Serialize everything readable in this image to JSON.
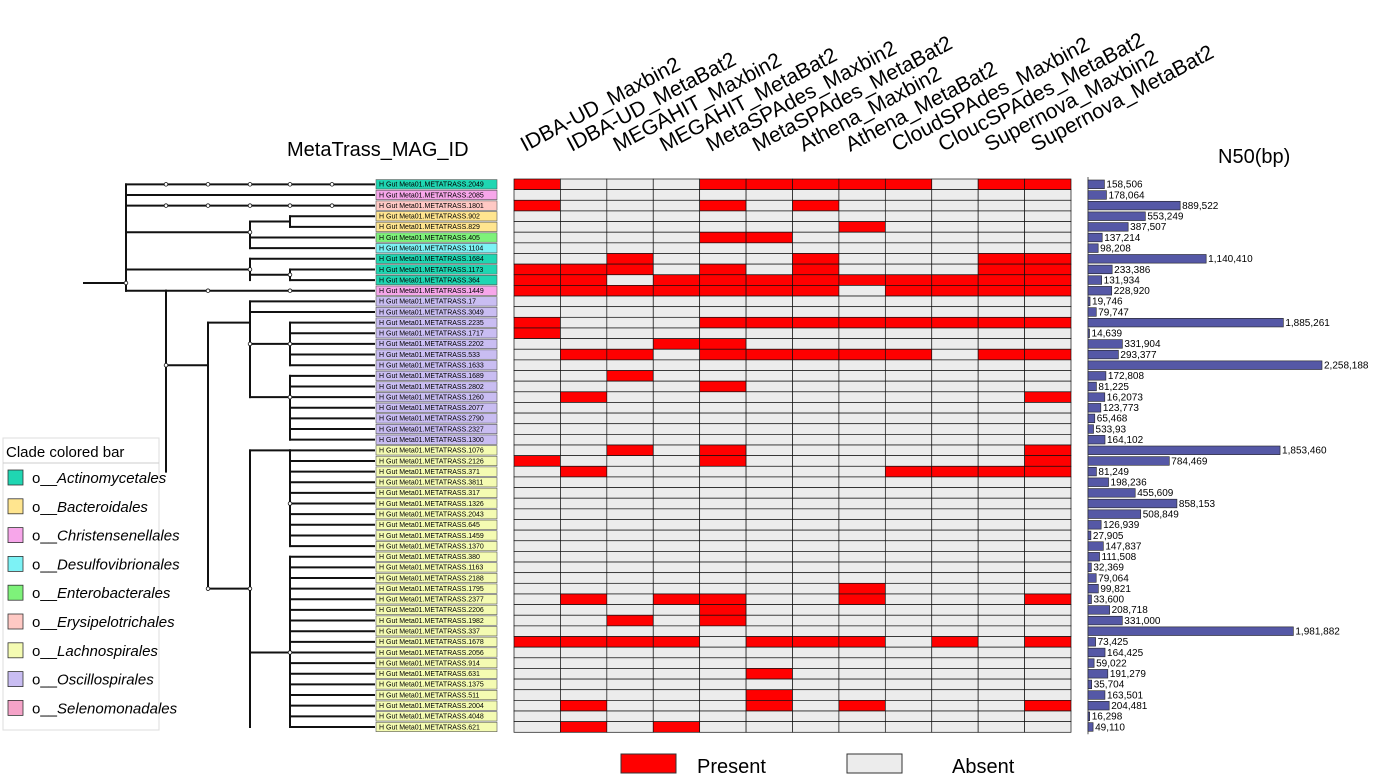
{
  "titles": {
    "id_title": "MetaTrass_MAG_ID",
    "n50_title": "N50(bp)"
  },
  "columns": [
    "IDBA-UD_Maxbin2",
    "IDBA-UD_MetaBat2",
    "MEGAHIT_Maxbin2",
    "MEGAHIT_MetaBat2",
    "MetaSPAdes_Maxbin2",
    "MetaSPAdes_MetaBat2",
    "Athena_Maxbin2",
    "Athena_MetaBat2",
    "CloudSPAdes_Maxbin2",
    "ClоucSPAdes_MetaBat2",
    "Supernova_Maxbin2",
    "Supernova_MetaBat2"
  ],
  "clade_legend": {
    "title": "Clade colored bar",
    "prefix": "o__",
    "items": [
      {
        "name": "Actinomycetales",
        "color": "#1fd6b2"
      },
      {
        "name": "Bacteroidales",
        "color": "#ffe58f"
      },
      {
        "name": "Christensenellales",
        "color": "#f7a6ea"
      },
      {
        "name": "Desulfovibrionales",
        "color": "#7cf2f5"
      },
      {
        "name": "Enterobacterales",
        "color": "#7ef27a"
      },
      {
        "name": "Erysipelotrichales",
        "color": "#ffc9c4"
      },
      {
        "name": "Lachnospirales",
        "color": "#f4fbb2"
      },
      {
        "name": "Oscillospirales",
        "color": "#c9bdf2"
      },
      {
        "name": "Selenomonadales",
        "color": "#f5a3c8"
      }
    ]
  },
  "presence_legend": {
    "present": "Present",
    "absent": "Absent"
  },
  "colors": {
    "present": "#ff0000",
    "absent": "#ececec",
    "bar": "#5558a6"
  },
  "chart_data": {
    "type": "heatmap",
    "rows": [
      {
        "id": "H Gut Meta01.METATRASS.2049",
        "clade": "Actinomycetales",
        "n50": 158506,
        "n50_label": "158,506",
        "presence": [
          1,
          0,
          0,
          0,
          1,
          1,
          1,
          1,
          1,
          0,
          1,
          1
        ]
      },
      {
        "id": "H Gut Meta01.METATRASS.2085",
        "clade": "Christensenellales",
        "n50": 178064,
        "n50_label": "178,064",
        "presence": [
          0,
          0,
          0,
          0,
          0,
          0,
          0,
          0,
          0,
          0,
          0,
          0
        ]
      },
      {
        "id": "H Gut Meta01.METATRASS.1801",
        "clade": "Erysipelotrichales",
        "n50": 889522,
        "n50_label": "889,522",
        "presence": [
          1,
          0,
          0,
          0,
          1,
          0,
          1,
          0,
          0,
          0,
          0,
          0
        ]
      },
      {
        "id": "H Gut Meta01.METATRASS.902",
        "clade": "Bacteroidales",
        "n50": 553249,
        "n50_label": "553,249",
        "presence": [
          0,
          0,
          0,
          0,
          0,
          0,
          0,
          0,
          0,
          0,
          0,
          0
        ]
      },
      {
        "id": "H Gut Meta01.METATRASS.829",
        "clade": "Bacteroidales",
        "n50": 387507,
        "n50_label": "387,507",
        "presence": [
          0,
          0,
          0,
          0,
          0,
          0,
          0,
          1,
          0,
          0,
          0,
          0
        ]
      },
      {
        "id": "H Gut Meta01.METATRASS.405",
        "clade": "Enterobacterales",
        "n50": 137214,
        "n50_label": "137,214",
        "presence": [
          0,
          0,
          0,
          0,
          1,
          1,
          0,
          0,
          0,
          0,
          0,
          0
        ]
      },
      {
        "id": "H Gut Meta01.METATRASS.1104",
        "clade": "Desulfovibrionales",
        "n50": 98208,
        "n50_label": "98,208",
        "presence": [
          0,
          0,
          0,
          0,
          0,
          0,
          0,
          0,
          0,
          0,
          0,
          0
        ]
      },
      {
        "id": "H Gut Meta01.METATRASS.1684",
        "clade": "Actinomycetales",
        "n50": 1140410,
        "n50_label": "1,140,410",
        "presence": [
          0,
          0,
          1,
          0,
          0,
          0,
          1,
          0,
          0,
          0,
          1,
          1
        ]
      },
      {
        "id": "H Gut Meta01.METATRASS.1173",
        "clade": "Actinomycetales",
        "n50": 233386,
        "n50_label": "233,386",
        "presence": [
          1,
          1,
          1,
          0,
          1,
          0,
          1,
          0,
          0,
          0,
          1,
          1
        ]
      },
      {
        "id": "H Gut Meta01.METATRASS.364",
        "clade": "Actinomycetales",
        "n50": 131934,
        "n50_label": "131,934",
        "presence": [
          1,
          1,
          0,
          1,
          1,
          1,
          1,
          1,
          1,
          1,
          1,
          1
        ]
      },
      {
        "id": "H Gut Meta01.METATRASS.1449",
        "clade": "Christensenellales",
        "n50": 228920,
        "n50_label": "228,920",
        "presence": [
          1,
          1,
          1,
          1,
          1,
          1,
          1,
          0,
          1,
          1,
          1,
          1
        ]
      },
      {
        "id": "H Gut Meta01.METATRASS.17",
        "clade": "Oscillospirales",
        "n50": 19746,
        "n50_label": "19,746",
        "presence": [
          0,
          0,
          0,
          0,
          0,
          0,
          0,
          0,
          0,
          0,
          0,
          0
        ]
      },
      {
        "id": "H Gut Meta01.METATRASS.3049",
        "clade": "Oscillospirales",
        "n50": 79747,
        "n50_label": "79,747",
        "presence": [
          0,
          0,
          0,
          0,
          0,
          0,
          0,
          0,
          0,
          0,
          0,
          0
        ]
      },
      {
        "id": "H Gut Meta01.METATRASS.2235",
        "clade": "Oscillospirales",
        "n50": 1885261,
        "n50_label": "1,885,261",
        "presence": [
          1,
          0,
          0,
          0,
          1,
          1,
          1,
          1,
          1,
          1,
          1,
          1
        ]
      },
      {
        "id": "H Gut Meta01.METATRASS.1717",
        "clade": "Oscillospirales",
        "n50": 14639,
        "n50_label": "14,639",
        "presence": [
          1,
          0,
          0,
          0,
          0,
          0,
          0,
          0,
          0,
          0,
          0,
          0
        ]
      },
      {
        "id": "H Gut Meta01.METATRASS.2202",
        "clade": "Oscillospirales",
        "n50": 331904,
        "n50_label": "331,904",
        "presence": [
          0,
          0,
          0,
          1,
          1,
          0,
          0,
          0,
          0,
          0,
          0,
          0
        ]
      },
      {
        "id": "H Gut Meta01.METATRASS.533",
        "clade": "Oscillospirales",
        "n50": 293377,
        "n50_label": "293,377",
        "presence": [
          0,
          1,
          1,
          0,
          1,
          1,
          1,
          1,
          1,
          0,
          1,
          1
        ]
      },
      {
        "id": "H Gut Meta01.METATRASS.1633",
        "clade": "Oscillospirales",
        "n50": 2258188,
        "n50_label": "2,258,188",
        "presence": [
          0,
          0,
          0,
          0,
          0,
          0,
          0,
          0,
          0,
          0,
          0,
          0
        ]
      },
      {
        "id": "H Gut Meta01.METATRASS.1689",
        "clade": "Oscillospirales",
        "n50": 172808,
        "n50_label": "172,808",
        "presence": [
          0,
          0,
          1,
          0,
          0,
          0,
          0,
          0,
          0,
          0,
          0,
          0
        ]
      },
      {
        "id": "H Gut Meta01.METATRASS.2802",
        "clade": "Oscillospirales",
        "n50": 81225,
        "n50_label": "81,225",
        "presence": [
          0,
          0,
          0,
          0,
          1,
          0,
          0,
          0,
          0,
          0,
          0,
          0
        ]
      },
      {
        "id": "H Gut Meta01.METATRASS.1260",
        "clade": "Oscillospirales",
        "n50": 162073,
        "n50_label": "16,2073",
        "presence": [
          0,
          1,
          0,
          0,
          0,
          0,
          0,
          0,
          0,
          0,
          0,
          1
        ]
      },
      {
        "id": "H Gut Meta01.METATRASS.2077",
        "clade": "Oscillospirales",
        "n50": 123773,
        "n50_label": "123,773",
        "presence": [
          0,
          0,
          0,
          0,
          0,
          0,
          0,
          0,
          0,
          0,
          0,
          0
        ]
      },
      {
        "id": "H Gut Meta01.METATRASS.2790",
        "clade": "Oscillospirales",
        "n50": 65468,
        "n50_label": "65,468",
        "presence": [
          0,
          0,
          0,
          0,
          0,
          0,
          0,
          0,
          0,
          0,
          0,
          0
        ]
      },
      {
        "id": "H Gut Meta01.METATRASS.2327",
        "clade": "Oscillospirales",
        "n50": 53393,
        "n50_label": "533,93",
        "presence": [
          0,
          0,
          0,
          0,
          0,
          0,
          0,
          0,
          0,
          0,
          0,
          0
        ]
      },
      {
        "id": "H Gut Meta01.METATRASS.1300",
        "clade": "Oscillospirales",
        "n50": 164102,
        "n50_label": "164,102",
        "presence": [
          0,
          0,
          0,
          0,
          0,
          0,
          0,
          0,
          0,
          0,
          0,
          0
        ]
      },
      {
        "id": "H Gut Meta01.METATRASS.1076",
        "clade": "Lachnospirales",
        "n50": 1853460,
        "n50_label": "1,853,460",
        "presence": [
          0,
          0,
          1,
          0,
          1,
          0,
          0,
          0,
          0,
          0,
          0,
          1
        ]
      },
      {
        "id": "H Gut Meta01.METATRASS.2126",
        "clade": "Lachnospirales",
        "n50": 784469,
        "n50_label": "784,469",
        "presence": [
          1,
          0,
          0,
          0,
          1,
          0,
          0,
          0,
          0,
          0,
          0,
          1
        ]
      },
      {
        "id": "H Gut Meta01.METATRASS.371",
        "clade": "Lachnospirales",
        "n50": 81249,
        "n50_label": "81,249",
        "presence": [
          0,
          1,
          0,
          0,
          0,
          0,
          0,
          0,
          1,
          1,
          1,
          1
        ]
      },
      {
        "id": "H Gut Meta01.METATRASS.3811",
        "clade": "Lachnospirales",
        "n50": 198236,
        "n50_label": "198,236",
        "presence": [
          0,
          0,
          0,
          0,
          0,
          0,
          0,
          0,
          0,
          0,
          0,
          0
        ]
      },
      {
        "id": "H Gut Meta01.METATRASS.317",
        "clade": "Lachnospirales",
        "n50": 455609,
        "n50_label": "455,609",
        "presence": [
          0,
          0,
          0,
          0,
          0,
          0,
          0,
          0,
          0,
          0,
          0,
          0
        ]
      },
      {
        "id": "H Gut Meta01.METATRASS.1326",
        "clade": "Lachnospirales",
        "n50": 858153,
        "n50_label": "858,153",
        "presence": [
          0,
          0,
          0,
          0,
          0,
          0,
          0,
          0,
          0,
          0,
          0,
          0
        ]
      },
      {
        "id": "H Gut Meta01.METATRASS.2043",
        "clade": "Lachnospirales",
        "n50": 508849,
        "n50_label": "508,849",
        "presence": [
          0,
          0,
          0,
          0,
          0,
          0,
          0,
          0,
          0,
          0,
          0,
          0
        ]
      },
      {
        "id": "H Gut Meta01.METATRASS.645",
        "clade": "Lachnospirales",
        "n50": 126939,
        "n50_label": "126,939",
        "presence": [
          0,
          0,
          0,
          0,
          0,
          0,
          0,
          0,
          0,
          0,
          0,
          0
        ]
      },
      {
        "id": "H Gut Meta01.METATRASS.1459",
        "clade": "Lachnospirales",
        "n50": 27905,
        "n50_label": "27,905",
        "presence": [
          0,
          0,
          0,
          0,
          0,
          0,
          0,
          0,
          0,
          0,
          0,
          0
        ]
      },
      {
        "id": "H Gut Meta01.METATRASS.1370",
        "clade": "Lachnospirales",
        "n50": 147837,
        "n50_label": "147,837",
        "presence": [
          0,
          0,
          0,
          0,
          0,
          0,
          0,
          0,
          0,
          0,
          0,
          0
        ]
      },
      {
        "id": "H Gut Meta01.METATRASS.380",
        "clade": "Lachnospirales",
        "n50": 111508,
        "n50_label": "111,508",
        "presence": [
          0,
          0,
          0,
          0,
          0,
          0,
          0,
          0,
          0,
          0,
          0,
          0
        ]
      },
      {
        "id": "H Gut Meta01.METATRASS.1163",
        "clade": "Lachnospirales",
        "n50": 32369,
        "n50_label": "32,369",
        "presence": [
          0,
          0,
          0,
          0,
          0,
          0,
          0,
          0,
          0,
          0,
          0,
          0
        ]
      },
      {
        "id": "H Gut Meta01.METATRASS.2188",
        "clade": "Lachnospirales",
        "n50": 79064,
        "n50_label": "79,064",
        "presence": [
          0,
          0,
          0,
          0,
          0,
          0,
          0,
          0,
          0,
          0,
          0,
          0
        ]
      },
      {
        "id": "H Gut Meta01.METATRASS.1795",
        "clade": "Lachnospirales",
        "n50": 99821,
        "n50_label": "99,821",
        "presence": [
          0,
          0,
          0,
          0,
          0,
          0,
          0,
          1,
          0,
          0,
          0,
          0
        ]
      },
      {
        "id": "H Gut Meta01.METATRASS.2377",
        "clade": "Lachnospirales",
        "n50": 33600,
        "n50_label": "33,600",
        "presence": [
          0,
          1,
          0,
          1,
          1,
          0,
          0,
          1,
          0,
          0,
          0,
          1
        ]
      },
      {
        "id": "H Gut Meta01.METATRASS.2206",
        "clade": "Lachnospirales",
        "n50": 208718,
        "n50_label": "208,718",
        "presence": [
          0,
          0,
          0,
          0,
          1,
          0,
          0,
          0,
          0,
          0,
          0,
          0
        ]
      },
      {
        "id": "H Gut Meta01.METATRASS.1982",
        "clade": "Lachnospirales",
        "n50": 331000,
        "n50_label": "331,000",
        "presence": [
          0,
          0,
          1,
          0,
          1,
          0,
          0,
          0,
          0,
          0,
          0,
          0
        ]
      },
      {
        "id": "H Gut Meta01.METATRASS.337",
        "clade": "Lachnospirales",
        "n50": 1981882,
        "n50_label": "1,981,882",
        "presence": [
          0,
          0,
          0,
          0,
          0,
          0,
          0,
          0,
          0,
          0,
          0,
          0
        ]
      },
      {
        "id": "H Gut Meta01.METATRASS.1678",
        "clade": "Lachnospirales",
        "n50": 73425,
        "n50_label": "73,425",
        "presence": [
          1,
          1,
          1,
          1,
          0,
          1,
          1,
          1,
          0,
          1,
          0,
          1
        ]
      },
      {
        "id": "H Gut Meta01.METATRASS.2056",
        "clade": "Lachnospirales",
        "n50": 164425,
        "n50_label": "164,425",
        "presence": [
          0,
          0,
          0,
          0,
          0,
          0,
          0,
          0,
          0,
          0,
          0,
          0
        ]
      },
      {
        "id": "H Gut Meta01.METATRASS.914",
        "clade": "Lachnospirales",
        "n50": 59022,
        "n50_label": "59,022",
        "presence": [
          0,
          0,
          0,
          0,
          0,
          0,
          0,
          0,
          0,
          0,
          0,
          0
        ]
      },
      {
        "id": "H Gut Meta01.METATRASS.631",
        "clade": "Lachnospirales",
        "n50": 191279,
        "n50_label": "191,279",
        "presence": [
          0,
          0,
          0,
          0,
          0,
          1,
          0,
          0,
          0,
          0,
          0,
          0
        ]
      },
      {
        "id": "H Gut Meta01.METATRASS.1375",
        "clade": "Lachnospirales",
        "n50": 35704,
        "n50_label": "35,704",
        "presence": [
          0,
          0,
          0,
          0,
          0,
          0,
          0,
          0,
          0,
          0,
          0,
          0
        ]
      },
      {
        "id": "H Gut Meta01.METATRASS.511",
        "clade": "Lachnospirales",
        "n50": 163501,
        "n50_label": "163,501",
        "presence": [
          0,
          0,
          0,
          0,
          0,
          1,
          0,
          0,
          0,
          0,
          0,
          0
        ]
      },
      {
        "id": "H Gut Meta01.METATRASS.2004",
        "clade": "Lachnospirales",
        "n50": 204481,
        "n50_label": "204,481",
        "presence": [
          0,
          1,
          0,
          0,
          0,
          1,
          0,
          1,
          0,
          0,
          0,
          1
        ]
      },
      {
        "id": "H Gut Meta01.METATRASS.4048",
        "clade": "Lachnospirales",
        "n50": 16298,
        "n50_label": "16,298",
        "presence": [
          0,
          0,
          0,
          0,
          0,
          0,
          0,
          0,
          0,
          0,
          0,
          0
        ]
      },
      {
        "id": "H Gut Meta01.METATRASS.621",
        "clade": "Lachnospirales",
        "n50": 49110,
        "n50_label": "49,110",
        "presence": [
          0,
          1,
          0,
          1,
          0,
          0,
          0,
          0,
          0,
          0,
          0,
          0
        ]
      }
    ]
  }
}
